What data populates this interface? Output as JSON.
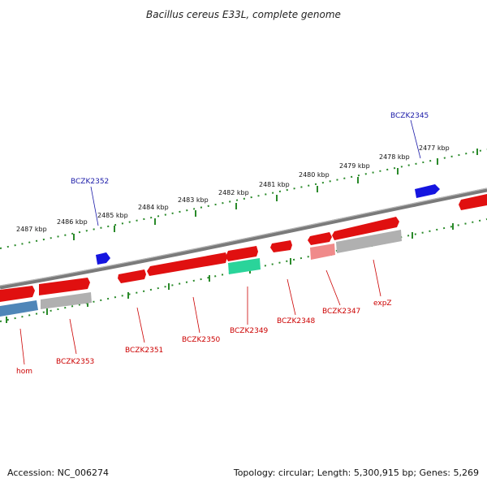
{
  "title": "Bacillus cereus E33L, complete genome",
  "footer": {
    "accession": "Accession: NC_006274",
    "topology": "Topology: circular; Length: 5,300,915 bp; Genes: 5,269"
  },
  "kbp_labels": [
    "2487 kbp",
    "2486 kbp",
    "2485 kbp",
    "2484 kbp",
    "2483 kbp",
    "2482 kbp",
    "2481 kbp",
    "2480 kbp",
    "2479 kbp",
    "2478 kbp",
    "2477 kbp"
  ],
  "gene_labels": [
    "hom",
    "BCZK2353",
    "BCZK2351",
    "BCZK2350",
    "BCZK2349",
    "BCZK2348",
    "BCZK2347",
    "expZ"
  ],
  "top_labels": [
    "BCZK2352",
    "BCZK2345"
  ],
  "colors": {
    "forward_cds": "#e01010",
    "reverse_cds": "#2020dd",
    "gene_gray": "#b0b0b0",
    "gene_pink": "#f08a8a",
    "gene_teal": "#2ad49a",
    "gene_steel": "#4f86b8",
    "backbone": "#7a7a7a",
    "ticks": "#2a8a2a",
    "label_red": "#cc0000",
    "label_blue": "#1a1aa8"
  }
}
